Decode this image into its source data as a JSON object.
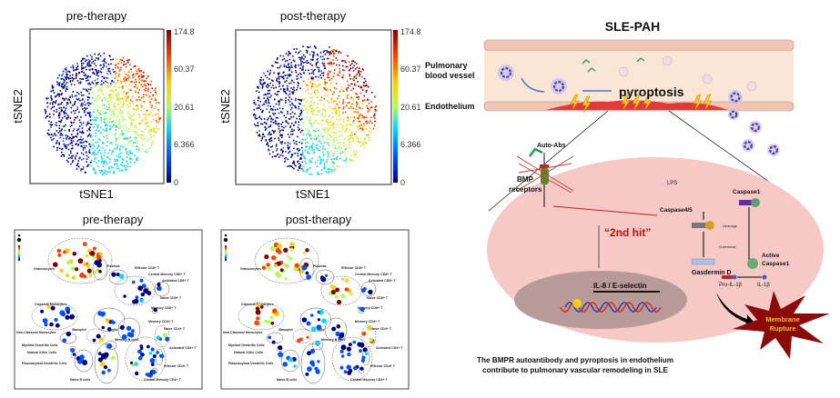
{
  "tsne_panels": [
    {
      "title": "pre-therapy",
      "xlabel": "tSNE1",
      "ylabel": "tSNE2"
    },
    {
      "title": "post-therapy",
      "xlabel": "tSNE1",
      "ylabel": "tSNE2"
    }
  ],
  "colorbar": {
    "ticks": [
      "174.8",
      "60.37",
      "20.61",
      "6.366",
      "0"
    ],
    "colors": [
      "#00007f",
      "#0050ff",
      "#00d8ff",
      "#b0ff50",
      "#ffd000",
      "#ff4000",
      "#7f0000"
    ]
  },
  "network_panels": [
    {
      "title": "pre-therapy"
    },
    {
      "title": "post-therapy"
    }
  ],
  "cluster_labels": [
    "Granulocytes",
    "Plasmas",
    "Effector CD8+ T",
    "Central Memory CD8+ T",
    "Activated CD8+ T",
    "Classical Monocytes",
    "Naive CD8+ T",
    "Memory CD8+ T",
    "Basophil",
    "Memory CD4+ T",
    "Non-Classical Monocytes",
    "T cells",
    "Naive CD4+ T",
    "Myeloid Dendritic Cells",
    "Memory B cells",
    "Natural Killer Cells",
    "Activated CD4+ T",
    "Plasmacytoid Dendritic Cells",
    "Effector CD4+ T",
    "Naive B cells",
    "Central Memory CD4+ T"
  ],
  "diagram": {
    "title": "SLE-PAH",
    "vessel_label_line1": "Pulmonary",
    "vessel_label_line2": "blood vessel",
    "endothelium_label": "Endothelium",
    "pyroptosis": "pyroptosis",
    "auto_abs": "Auto-Abs",
    "bmp_line1": "BMP",
    "bmp_line2": "receptors",
    "second_hit": "“2nd hit”",
    "il8": "IL-8 / E-selectin",
    "lps": "LPS",
    "caspase45": "Caspase4/5",
    "caspase1": "Caspase1",
    "cleavage": "cleavage",
    "n_terminal": "N-terminal",
    "active_line1": "Active",
    "active_line2": "Caspase1",
    "gasdermin": "Gasdermin D",
    "pro_il1b": "Pro-IL-1β",
    "il1b": "IL-1β",
    "rupture_line1": "Membrane",
    "rupture_line2": "Rupture",
    "caption_line1": "The BMPR autoantibody and pyroptosis in endothelium",
    "caption_line2": "contribute to pulmonary vascular remodeling in SLE"
  }
}
